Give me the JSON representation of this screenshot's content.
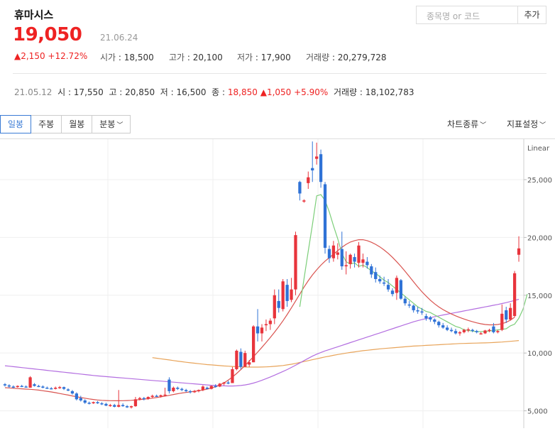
{
  "header": {
    "stock_name": "휴마시스",
    "price": "19,050",
    "price_date": "21.06.24",
    "change_arrow": "▲",
    "change": "2,150",
    "change_pct": "+12.72%",
    "open_label": "시가",
    "open": "18,500",
    "high_label": "고가",
    "high": "20,100",
    "low_label": "저가",
    "low": "17,900",
    "volume_label": "거래량",
    "volume": "20,279,728"
  },
  "search": {
    "placeholder": "종목명 or 코드",
    "add_label": "추가"
  },
  "hover_info": {
    "date": "21.05.12",
    "open_label": "시",
    "open": "17,550",
    "high_label": "고",
    "high": "20,850",
    "low_label": "저",
    "low": "16,500",
    "close_label": "종",
    "close": "18,850",
    "change_arrow": "▲",
    "change": "1,050",
    "change_pct": "+5.90%",
    "volume_label": "거래량",
    "volume": "18,102,783"
  },
  "tabs": [
    {
      "label": "일봉",
      "active": true
    },
    {
      "label": "주봉",
      "active": false
    },
    {
      "label": "월봉",
      "active": false
    },
    {
      "label": "분봉",
      "active": false
    }
  ],
  "menus": {
    "chart_type": "차트종류",
    "indicator": "지표설정"
  },
  "colors": {
    "up": "#e8343c",
    "down": "#2f72d6",
    "ma5": "#7cce79",
    "ma20": "#d9534f",
    "ma60": "#b36ee0",
    "ma120": "#e8a45a",
    "price_text": "#e22222"
  },
  "chart_data": {
    "type": "candlestick",
    "scale_label": "Linear",
    "y_ticks": [
      5000,
      10000,
      15000,
      20000,
      25000
    ],
    "y_tick_labels": [
      "5,000",
      "10,000",
      "15,000",
      "20,000",
      "25,000"
    ],
    "ylim": [
      3500,
      28500
    ],
    "grid": true,
    "candles": [
      [
        7300,
        7400,
        7100,
        7200
      ],
      [
        7200,
        7300,
        7000,
        7100
      ],
      [
        7100,
        7200,
        6950,
        7050
      ],
      [
        7050,
        7200,
        7000,
        7150
      ],
      [
        7150,
        7250,
        7050,
        7100
      ],
      [
        7100,
        7200,
        7000,
        7050
      ],
      [
        7000,
        8000,
        7000,
        7900
      ],
      [
        7300,
        7400,
        7100,
        7150
      ],
      [
        7150,
        7250,
        7050,
        7100
      ],
      [
        7100,
        7200,
        6950,
        7000
      ],
      [
        7000,
        7100,
        6900,
        6950
      ],
      [
        6950,
        7050,
        6850,
        6900
      ],
      [
        6900,
        7100,
        6850,
        7000
      ],
      [
        7000,
        7150,
        6900,
        7050
      ],
      [
        7050,
        7100,
        6800,
        6900
      ],
      [
        6850,
        6950,
        6700,
        6750
      ],
      [
        6700,
        6800,
        6400,
        6500
      ],
      [
        6500,
        6600,
        5900,
        6000
      ],
      [
        6100,
        6300,
        5800,
        5900
      ],
      [
        5900,
        6000,
        5600,
        5700
      ],
      [
        5700,
        5800,
        5550,
        5650
      ],
      [
        5650,
        5800,
        5600,
        5750
      ],
      [
        5750,
        5850,
        5600,
        5650
      ],
      [
        5650,
        5750,
        5500,
        5600
      ],
      [
        5600,
        5700,
        5400,
        5450
      ],
      [
        5450,
        5600,
        5350,
        5500
      ],
      [
        5500,
        5600,
        5300,
        5350
      ],
      [
        5350,
        6800,
        5300,
        5500
      ],
      [
        5500,
        5650,
        5350,
        5400
      ],
      [
        5400,
        5500,
        5250,
        5300
      ],
      [
        5300,
        5450,
        5200,
        5400
      ],
      [
        5400,
        6200,
        5350,
        6000
      ],
      [
        6000,
        6200,
        5900,
        6100
      ],
      [
        6100,
        6200,
        5900,
        6050
      ],
      [
        6050,
        6250,
        5950,
        6200
      ],
      [
        6200,
        6400,
        6100,
        6300
      ],
      [
        6300,
        6400,
        6200,
        6250
      ],
      [
        6250,
        6400,
        6150,
        6350
      ],
      [
        6350,
        7000,
        6300,
        6400
      ],
      [
        7700,
        7900,
        6500,
        6700
      ],
      [
        6700,
        7100,
        6600,
        7000
      ],
      [
        7000,
        7100,
        6800,
        6900
      ],
      [
        6900,
        7000,
        6700,
        6800
      ],
      [
        6800,
        6900,
        6600,
        6700
      ],
      [
        6700,
        6800,
        6500,
        6650
      ],
      [
        6650,
        6800,
        6550,
        6700
      ],
      [
        6700,
        6850,
        6600,
        6800
      ],
      [
        6800,
        7200,
        6700,
        7100
      ],
      [
        7000,
        7100,
        6850,
        6900
      ],
      [
        6900,
        7200,
        6850,
        7150
      ],
      [
        7150,
        7300,
        7000,
        7100
      ],
      [
        7100,
        7400,
        7050,
        7350
      ],
      [
        7350,
        7500,
        7200,
        7450
      ],
      [
        7450,
        7600,
        7300,
        7400
      ],
      [
        7400,
        8800,
        7400,
        8600
      ],
      [
        8600,
        10300,
        8500,
        10200
      ],
      [
        10100,
        10400,
        8600,
        8800
      ],
      [
        8800,
        10200,
        8800,
        10000
      ],
      [
        9000,
        9400,
        8800,
        9200
      ],
      [
        9200,
        12400,
        9200,
        12300
      ],
      [
        12300,
        13800,
        11000,
        11700
      ],
      [
        11700,
        12500,
        11000,
        12200
      ],
      [
        12400,
        12900,
        11900,
        12500
      ],
      [
        12500,
        13000,
        12000,
        12800
      ],
      [
        13000,
        15500,
        12500,
        15000
      ],
      [
        14500,
        15500,
        13500,
        13900
      ],
      [
        13800,
        16400,
        13600,
        16200
      ],
      [
        15900,
        16400,
        14000,
        14500
      ],
      [
        14600,
        16500,
        14400,
        15500
      ],
      [
        15500,
        20500,
        15000,
        20200
      ],
      [
        24800,
        24900,
        23200,
        23800
      ],
      [
        23100,
        23300,
        23000,
        23200
      ],
      [
        24700,
        25700,
        24200,
        25200
      ],
      [
        26000,
        28300,
        24800,
        25800
      ],
      [
        26800,
        28200,
        26300,
        27000
      ],
      [
        27200,
        27600,
        24300,
        24800
      ],
      [
        24600,
        24800,
        18600,
        19100
      ],
      [
        19000,
        19300,
        17800,
        18200
      ],
      [
        18200,
        19700,
        17900,
        19300
      ],
      [
        18500,
        19500,
        18100,
        18700
      ],
      [
        19000,
        20500,
        17200,
        17500
      ],
      [
        17500,
        18800,
        16800,
        17600
      ],
      [
        17700,
        18600,
        17300,
        18500
      ],
      [
        18300,
        18600,
        17400,
        17900
      ],
      [
        17800,
        19600,
        17400,
        19300
      ],
      [
        17800,
        18600,
        17400,
        18100
      ],
      [
        17900,
        18300,
        17300,
        17600
      ],
      [
        17500,
        17700,
        16500,
        16800
      ],
      [
        17000,
        17400,
        16100,
        16400
      ],
      [
        16400,
        16700,
        16000,
        16200
      ],
      [
        16100,
        16600,
        15800,
        16000
      ],
      [
        15900,
        16400,
        15300,
        15500
      ],
      [
        15400,
        15600,
        14900,
        15100
      ],
      [
        15200,
        16700,
        14600,
        16500
      ],
      [
        16300,
        16400,
        14600,
        14700
      ],
      [
        14700,
        14900,
        14100,
        14300
      ],
      [
        14200,
        14500,
        13900,
        14100
      ],
      [
        14100,
        14200,
        13500,
        13700
      ],
      [
        13700,
        14000,
        13400,
        13600
      ],
      [
        13600,
        13900,
        13300,
        13500
      ],
      [
        13200,
        13400,
        12800,
        13000
      ],
      [
        13100,
        13200,
        12700,
        12900
      ],
      [
        12900,
        13000,
        12500,
        12700
      ],
      [
        12700,
        12800,
        12200,
        12400
      ],
      [
        12400,
        12600,
        12100,
        12200
      ],
      [
        12200,
        12400,
        11900,
        12000
      ],
      [
        12000,
        12200,
        11800,
        11900
      ],
      [
        11900,
        12100,
        11600,
        11700
      ],
      [
        11700,
        11900,
        11500,
        11800
      ],
      [
        11800,
        12100,
        11700,
        12000
      ],
      [
        12000,
        12200,
        11800,
        12050
      ],
      [
        12000,
        12100,
        11800,
        11950
      ],
      [
        11900,
        12000,
        11700,
        11800
      ],
      [
        11700,
        11800,
        11600,
        11700
      ],
      [
        11700,
        12000,
        11650,
        11950
      ],
      [
        11900,
        12100,
        11800,
        12000
      ],
      [
        12300,
        12600,
        11700,
        11800
      ],
      [
        11800,
        12000,
        11700,
        11900
      ],
      [
        12000,
        14200,
        11900,
        13400
      ],
      [
        13700,
        14000,
        12600,
        12900
      ],
      [
        12900,
        14300,
        12800,
        13900
      ],
      [
        13200,
        17100,
        13100,
        16900
      ],
      [
        18500,
        20100,
        17900,
        19050
      ]
    ],
    "ma5": {
      "start": 70,
      "values": [
        14000,
        16400,
        18800,
        21100,
        23600,
        23700,
        23200,
        22200,
        21000,
        19900,
        18600,
        17900,
        17700,
        17800,
        17500,
        17600,
        17400,
        17100,
        16900,
        16600,
        16300,
        16100,
        15800,
        15500,
        15200,
        14900,
        14600,
        14300,
        14000,
        13800,
        13600,
        13500,
        13300,
        13100,
        12900,
        12700,
        12500,
        12300,
        12200,
        12000,
        11950,
        11900,
        11850,
        11850,
        11870,
        11900,
        11950,
        12000,
        12050,
        12100,
        12350,
        12500,
        13000,
        13800,
        15100
      ]
    },
    "ma20": {
      "start": 0,
      "values": [
        7000,
        6980,
        6950,
        6920,
        6900,
        6880,
        6860,
        6830,
        6790,
        6740,
        6690,
        6630,
        6570,
        6500,
        6430,
        6360,
        6290,
        6220,
        6150,
        6090,
        6030,
        5980,
        5940,
        5910,
        5890,
        5880,
        5870,
        5870,
        5880,
        5890,
        5910,
        5940,
        5970,
        6010,
        6050,
        6100,
        6150,
        6210,
        6270,
        6340,
        6410,
        6480,
        6540,
        6590,
        6640,
        6690,
        6740,
        6800,
        6870,
        6960,
        7080,
        7230,
        7420,
        7650,
        7920,
        8230,
        8560,
        8920,
        9290,
        9680,
        10080,
        10490,
        10910,
        11350,
        11800,
        12280,
        12790,
        13330,
        13900,
        14500,
        15100,
        15700,
        16250,
        16750,
        17200,
        17600,
        17950,
        18250,
        18550,
        18850,
        19150,
        19400,
        19600,
        19720,
        19800,
        19800,
        19720,
        19580,
        19400,
        19180,
        18920,
        18620,
        18280,
        17900,
        17500,
        17070,
        16620,
        16160,
        15720,
        15300,
        14920,
        14570,
        14260,
        13990,
        13760,
        13560,
        13380,
        13220,
        13070,
        12940,
        12820,
        12710,
        12610,
        12530,
        12470,
        12440,
        12440,
        12470,
        12540,
        12660,
        12850,
        13100
      ]
    },
    "ma60": {
      "start": 0,
      "values": [
        8900,
        8860,
        8820,
        8780,
        8740,
        8700,
        8660,
        8620,
        8580,
        8540,
        8500,
        8460,
        8420,
        8380,
        8340,
        8300,
        8260,
        8220,
        8180,
        8140,
        8100,
        8060,
        8020,
        7990,
        7960,
        7930,
        7900,
        7870,
        7840,
        7810,
        7780,
        7750,
        7720,
        7690,
        7660,
        7630,
        7600,
        7570,
        7540,
        7510,
        7480,
        7450,
        7420,
        7390,
        7360,
        7330,
        7300,
        7270,
        7240,
        7210,
        7190,
        7170,
        7160,
        7150,
        7150,
        7160,
        7190,
        7240,
        7310,
        7400,
        7510,
        7640,
        7780,
        7930,
        8080,
        8240,
        8400,
        8570,
        8750,
        8940,
        9140,
        9340,
        9540,
        9730,
        9900,
        10050,
        10180,
        10300,
        10420,
        10540,
        10660,
        10780,
        10900,
        11020,
        11140,
        11260,
        11380,
        11500,
        11620,
        11740,
        11860,
        11980,
        12100,
        12220,
        12340,
        12460,
        12580,
        12700,
        12800,
        12890,
        12980,
        13060,
        13140,
        13220,
        13290,
        13360,
        13430,
        13500,
        13570,
        13640,
        13710,
        13780,
        13850,
        13920,
        13990,
        14060,
        14130,
        14200,
        14280,
        14360,
        14450,
        14550,
        14650
      ]
    },
    "ma120": {
      "start": 35,
      "values": [
        9600,
        9550,
        9500,
        9450,
        9400,
        9350,
        9300,
        9250,
        9200,
        9160,
        9120,
        9080,
        9040,
        9000,
        8970,
        8940,
        8910,
        8880,
        8860,
        8840,
        8820,
        8800,
        8790,
        8780,
        8780,
        8780,
        8790,
        8800,
        8820,
        8850,
        8880,
        8920,
        8970,
        9030,
        9100,
        9180,
        9260,
        9340,
        9420,
        9500,
        9580,
        9660,
        9730,
        9800,
        9870,
        9930,
        9990,
        10050,
        10100,
        10150,
        10200,
        10240,
        10280,
        10320,
        10360,
        10390,
        10420,
        10450,
        10480,
        10510,
        10540,
        10570,
        10600,
        10620,
        10640,
        10660,
        10680,
        10700,
        10720,
        10740,
        10760,
        10780,
        10800,
        10820,
        10830,
        10840,
        10850,
        10860,
        10870,
        10880,
        10890,
        10910,
        10930,
        10950,
        10980,
        11010,
        11040,
        11080
      ]
    }
  }
}
